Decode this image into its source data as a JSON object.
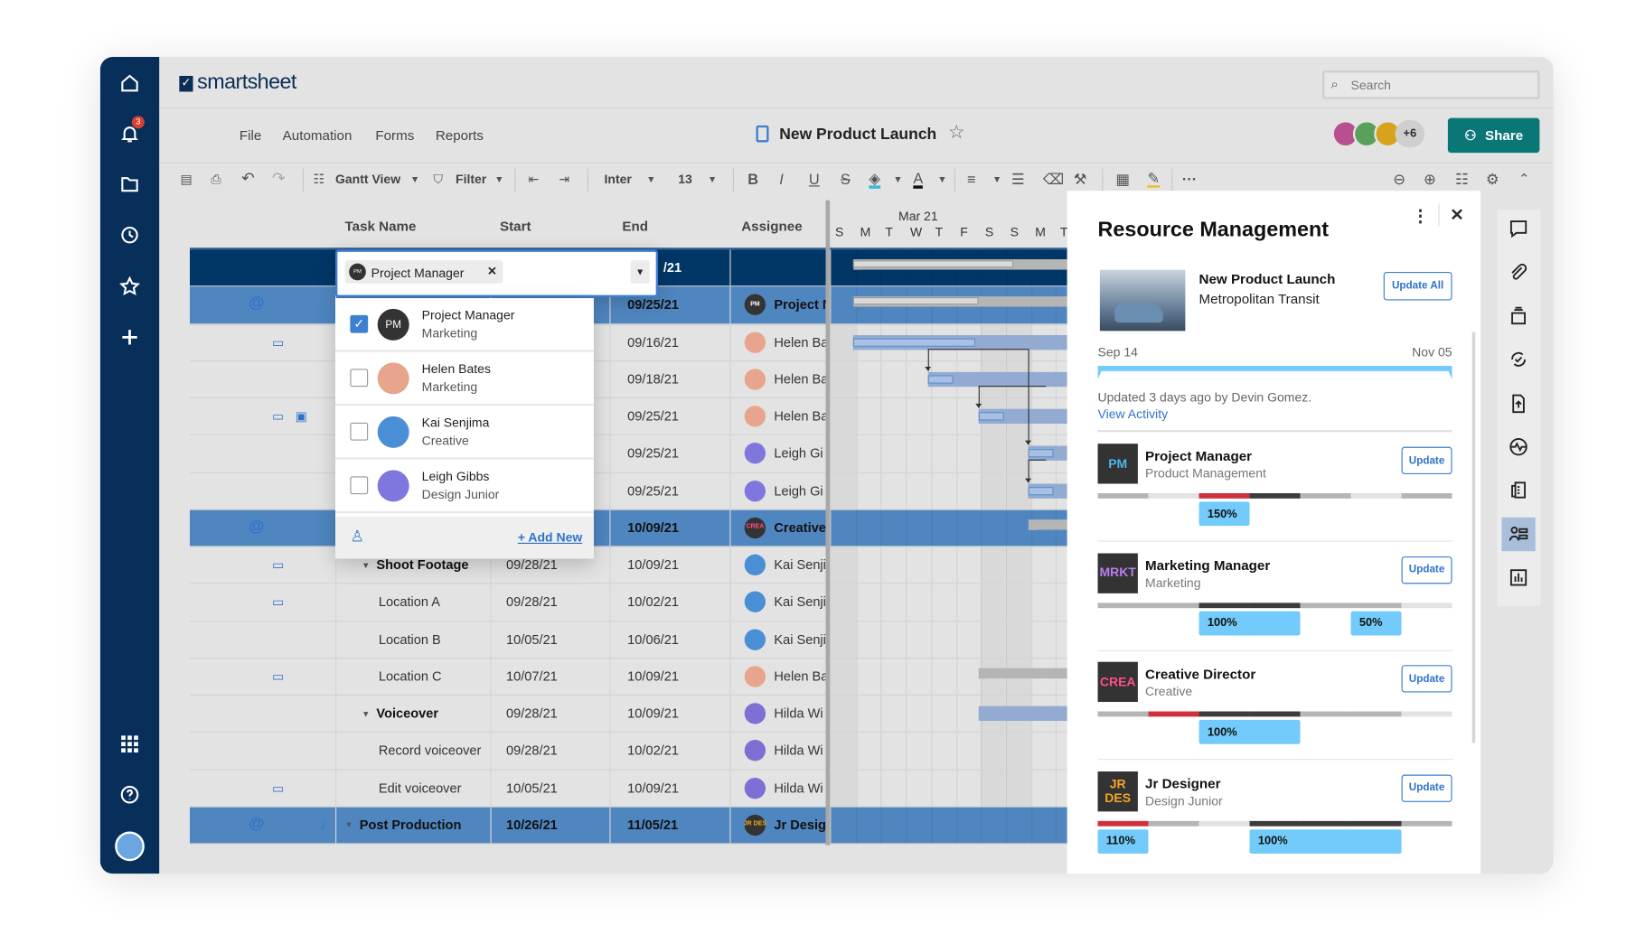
{
  "app": {
    "logo": "smartsheet",
    "search_placeholder": "Search",
    "notification_count": "3"
  },
  "menu": [
    "File",
    "Automation",
    "Forms",
    "Reports"
  ],
  "sheet": {
    "title": "New Product Launch",
    "collaborators_more": "+6",
    "share_label": "Share"
  },
  "toolbar": {
    "view": "Gantt View",
    "filter": "Filter",
    "font": "Inter",
    "size": "13",
    "fill_color": "#3ab7d8",
    "text_color": "#111111"
  },
  "columns": [
    "Task Name",
    "Start",
    "End",
    "Assignee"
  ],
  "gantt": {
    "month": "Mar 21",
    "days": [
      "S",
      "M",
      "T",
      "W",
      "T",
      "F",
      "S",
      "S",
      "M",
      "T"
    ]
  },
  "rows": [
    {
      "task": "",
      "start": "",
      "end": "/21",
      "assignee": "",
      "av": "",
      "style": "navy",
      "icons": []
    },
    {
      "task": "",
      "start": "",
      "end": "09/25/21",
      "assignee": "Project M",
      "av": "pm",
      "style": "blue",
      "icons": [
        "attachment"
      ]
    },
    {
      "task": "",
      "start": "",
      "end": "09/16/21",
      "assignee": "Helen Ba",
      "av": "helen",
      "style": "",
      "icons": [
        "comment"
      ]
    },
    {
      "task": "",
      "start": "",
      "end": "09/18/21",
      "assignee": "Helen Ba",
      "av": "helen",
      "style": "",
      "icons": []
    },
    {
      "task": "",
      "start": "",
      "end": "09/25/21",
      "assignee": "Helen Ba",
      "av": "helen",
      "style": "",
      "icons": [
        "comment",
        "proof"
      ]
    },
    {
      "task": "",
      "start": "",
      "end": "09/25/21",
      "assignee": "Leigh Gi",
      "av": "leigh",
      "style": "",
      "icons": []
    },
    {
      "task": "",
      "start": "",
      "end": "09/25/21",
      "assignee": "Leigh Gi",
      "av": "leigh",
      "style": "",
      "icons": []
    },
    {
      "task": "",
      "start": "",
      "end": "10/09/21",
      "assignee": "Creative",
      "av": "crea",
      "style": "blue",
      "icons": [
        "attachment"
      ]
    },
    {
      "task": "Shoot Footage",
      "start": "09/28/21",
      "end": "10/09/21",
      "assignee": "Kai Senji",
      "av": "kai",
      "style": "",
      "parent": true,
      "level": 1,
      "icons": [
        "comment"
      ]
    },
    {
      "task": "Location A",
      "start": "09/28/21",
      "end": "10/02/21",
      "assignee": "Kai Senji",
      "av": "kai",
      "style": "",
      "level": 2,
      "icons": [
        "comment"
      ]
    },
    {
      "task": "Location B",
      "start": "10/05/21",
      "end": "10/06/21",
      "assignee": "Kai Senji",
      "av": "kai",
      "style": "",
      "level": 2,
      "icons": []
    },
    {
      "task": "Location C",
      "start": "10/07/21",
      "end": "10/09/21",
      "assignee": "Helen Ba",
      "av": "helen",
      "style": "",
      "level": 2,
      "icons": [
        "comment"
      ]
    },
    {
      "task": "Voiceover",
      "start": "09/28/21",
      "end": "10/09/21",
      "assignee": "Hilda Wi",
      "av": "hilda",
      "style": "",
      "parent": true,
      "level": 1,
      "icons": []
    },
    {
      "task": "Record voiceover",
      "start": "09/28/21",
      "end": "10/02/21",
      "assignee": "Hilda Wi",
      "av": "hilda",
      "style": "",
      "level": 2,
      "icons": []
    },
    {
      "task": "Edit voiceover",
      "start": "10/05/21",
      "end": "10/09/21",
      "assignee": "Hilda Wi",
      "av": "hilda",
      "style": "",
      "level": 2,
      "icons": [
        "comment"
      ]
    },
    {
      "task": "Post Production",
      "start": "10/26/21",
      "end": "11/05/21",
      "assignee": "Jr Desig",
      "av": "jr",
      "style": "blue",
      "parent": true,
      "level": 0,
      "icons": [
        "attachment",
        "reminder"
      ]
    }
  ],
  "avatars": {
    "pm": {
      "label": "PM",
      "bg": "#333333",
      "fg": "#ffffff"
    },
    "crea": {
      "label": "CREA",
      "bg": "#333333",
      "fg": "#ff4f8a"
    },
    "jr": {
      "label": "JR DES",
      "bg": "#333333",
      "fg": "#f5a623"
    },
    "helen": {
      "label": "",
      "bg": "#e8a48c",
      "fg": "#fff"
    },
    "kai": {
      "label": "",
      "bg": "#4a8fd6",
      "fg": "#fff"
    },
    "leigh": {
      "label": "",
      "bg": "#7f77de",
      "fg": "#fff"
    },
    "hilda": {
      "label": "",
      "bg": "#7d6fd3",
      "fg": "#fff"
    }
  },
  "dropdown": {
    "chip": "Project Manager",
    "chip_avatar": "PM",
    "add_new": "+ Add New",
    "items": [
      {
        "name": "Project Manager",
        "sub": "Marketing",
        "checked": true,
        "av": "pm"
      },
      {
        "name": "Helen Bates",
        "sub": "Marketing",
        "checked": false,
        "av": "helen"
      },
      {
        "name": "Kai Senjima",
        "sub": "Creative",
        "checked": false,
        "av": "kai"
      },
      {
        "name": "Leigh Gibbs",
        "sub": "Design Junior",
        "checked": false,
        "av": "leigh"
      }
    ]
  },
  "resource_panel": {
    "title": "Resource Management",
    "project": "New Product Launch",
    "client": "Metropolitan Transit",
    "update_all": "Update All",
    "start": "Sep 14",
    "end": "Nov 05",
    "updated": "Updated 3 days ago by Devin Gomez.",
    "view_activity": "View Activity",
    "update_label": "Update",
    "colors": {
      "gray": "#b5b5b5",
      "light": "#e3e3e3",
      "red": "#d22f3c",
      "dark": "#3c3c3c",
      "chip": "#72cbfa"
    },
    "roles": [
      {
        "abbr": "PM",
        "abbr_color": "#4fb3f0",
        "title": "Project Manager",
        "dept": "Product Management",
        "segments": [
          "gray",
          "light",
          "red",
          "dark",
          "gray",
          "light",
          "gray"
        ],
        "allocations": [
          {
            "label": "150%",
            "week": 2,
            "weeks": 1
          }
        ]
      },
      {
        "abbr": "MRKT",
        "abbr_color": "#b77ef0",
        "title": "Marketing Manager",
        "dept": "Marketing",
        "segments": [
          "gray",
          "gray",
          "dark",
          "dark",
          "gray",
          "gray",
          "light"
        ],
        "allocations": [
          {
            "label": "100%",
            "week": 2,
            "weeks": 2
          },
          {
            "label": "50%",
            "week": 5,
            "weeks": 1
          }
        ]
      },
      {
        "abbr": "CREA",
        "abbr_color": "#ff4f8a",
        "title": "Creative Director",
        "dept": "Creative",
        "segments": [
          "gray",
          "red",
          "dark",
          "dark",
          "gray",
          "gray",
          "light"
        ],
        "allocations": [
          {
            "label": "100%",
            "week": 2,
            "weeks": 2
          }
        ]
      },
      {
        "abbr": "JR DES",
        "abbr_color": "#f5a623",
        "title": "Jr Designer",
        "dept": "Design Junior",
        "segments": [
          "red",
          "gray",
          "light",
          "dark",
          "dark",
          "dark",
          "gray"
        ],
        "allocations": [
          {
            "label": "110%",
            "week": 0,
            "weeks": 1
          },
          {
            "label": "100%",
            "week": 3,
            "weeks": 3
          }
        ]
      }
    ]
  },
  "colors": {
    "sidebar": "#072f5a",
    "share": "#0a7675",
    "row_parent": "#4f86c0",
    "row_top": "#003767",
    "accent": "#2f73c9"
  }
}
